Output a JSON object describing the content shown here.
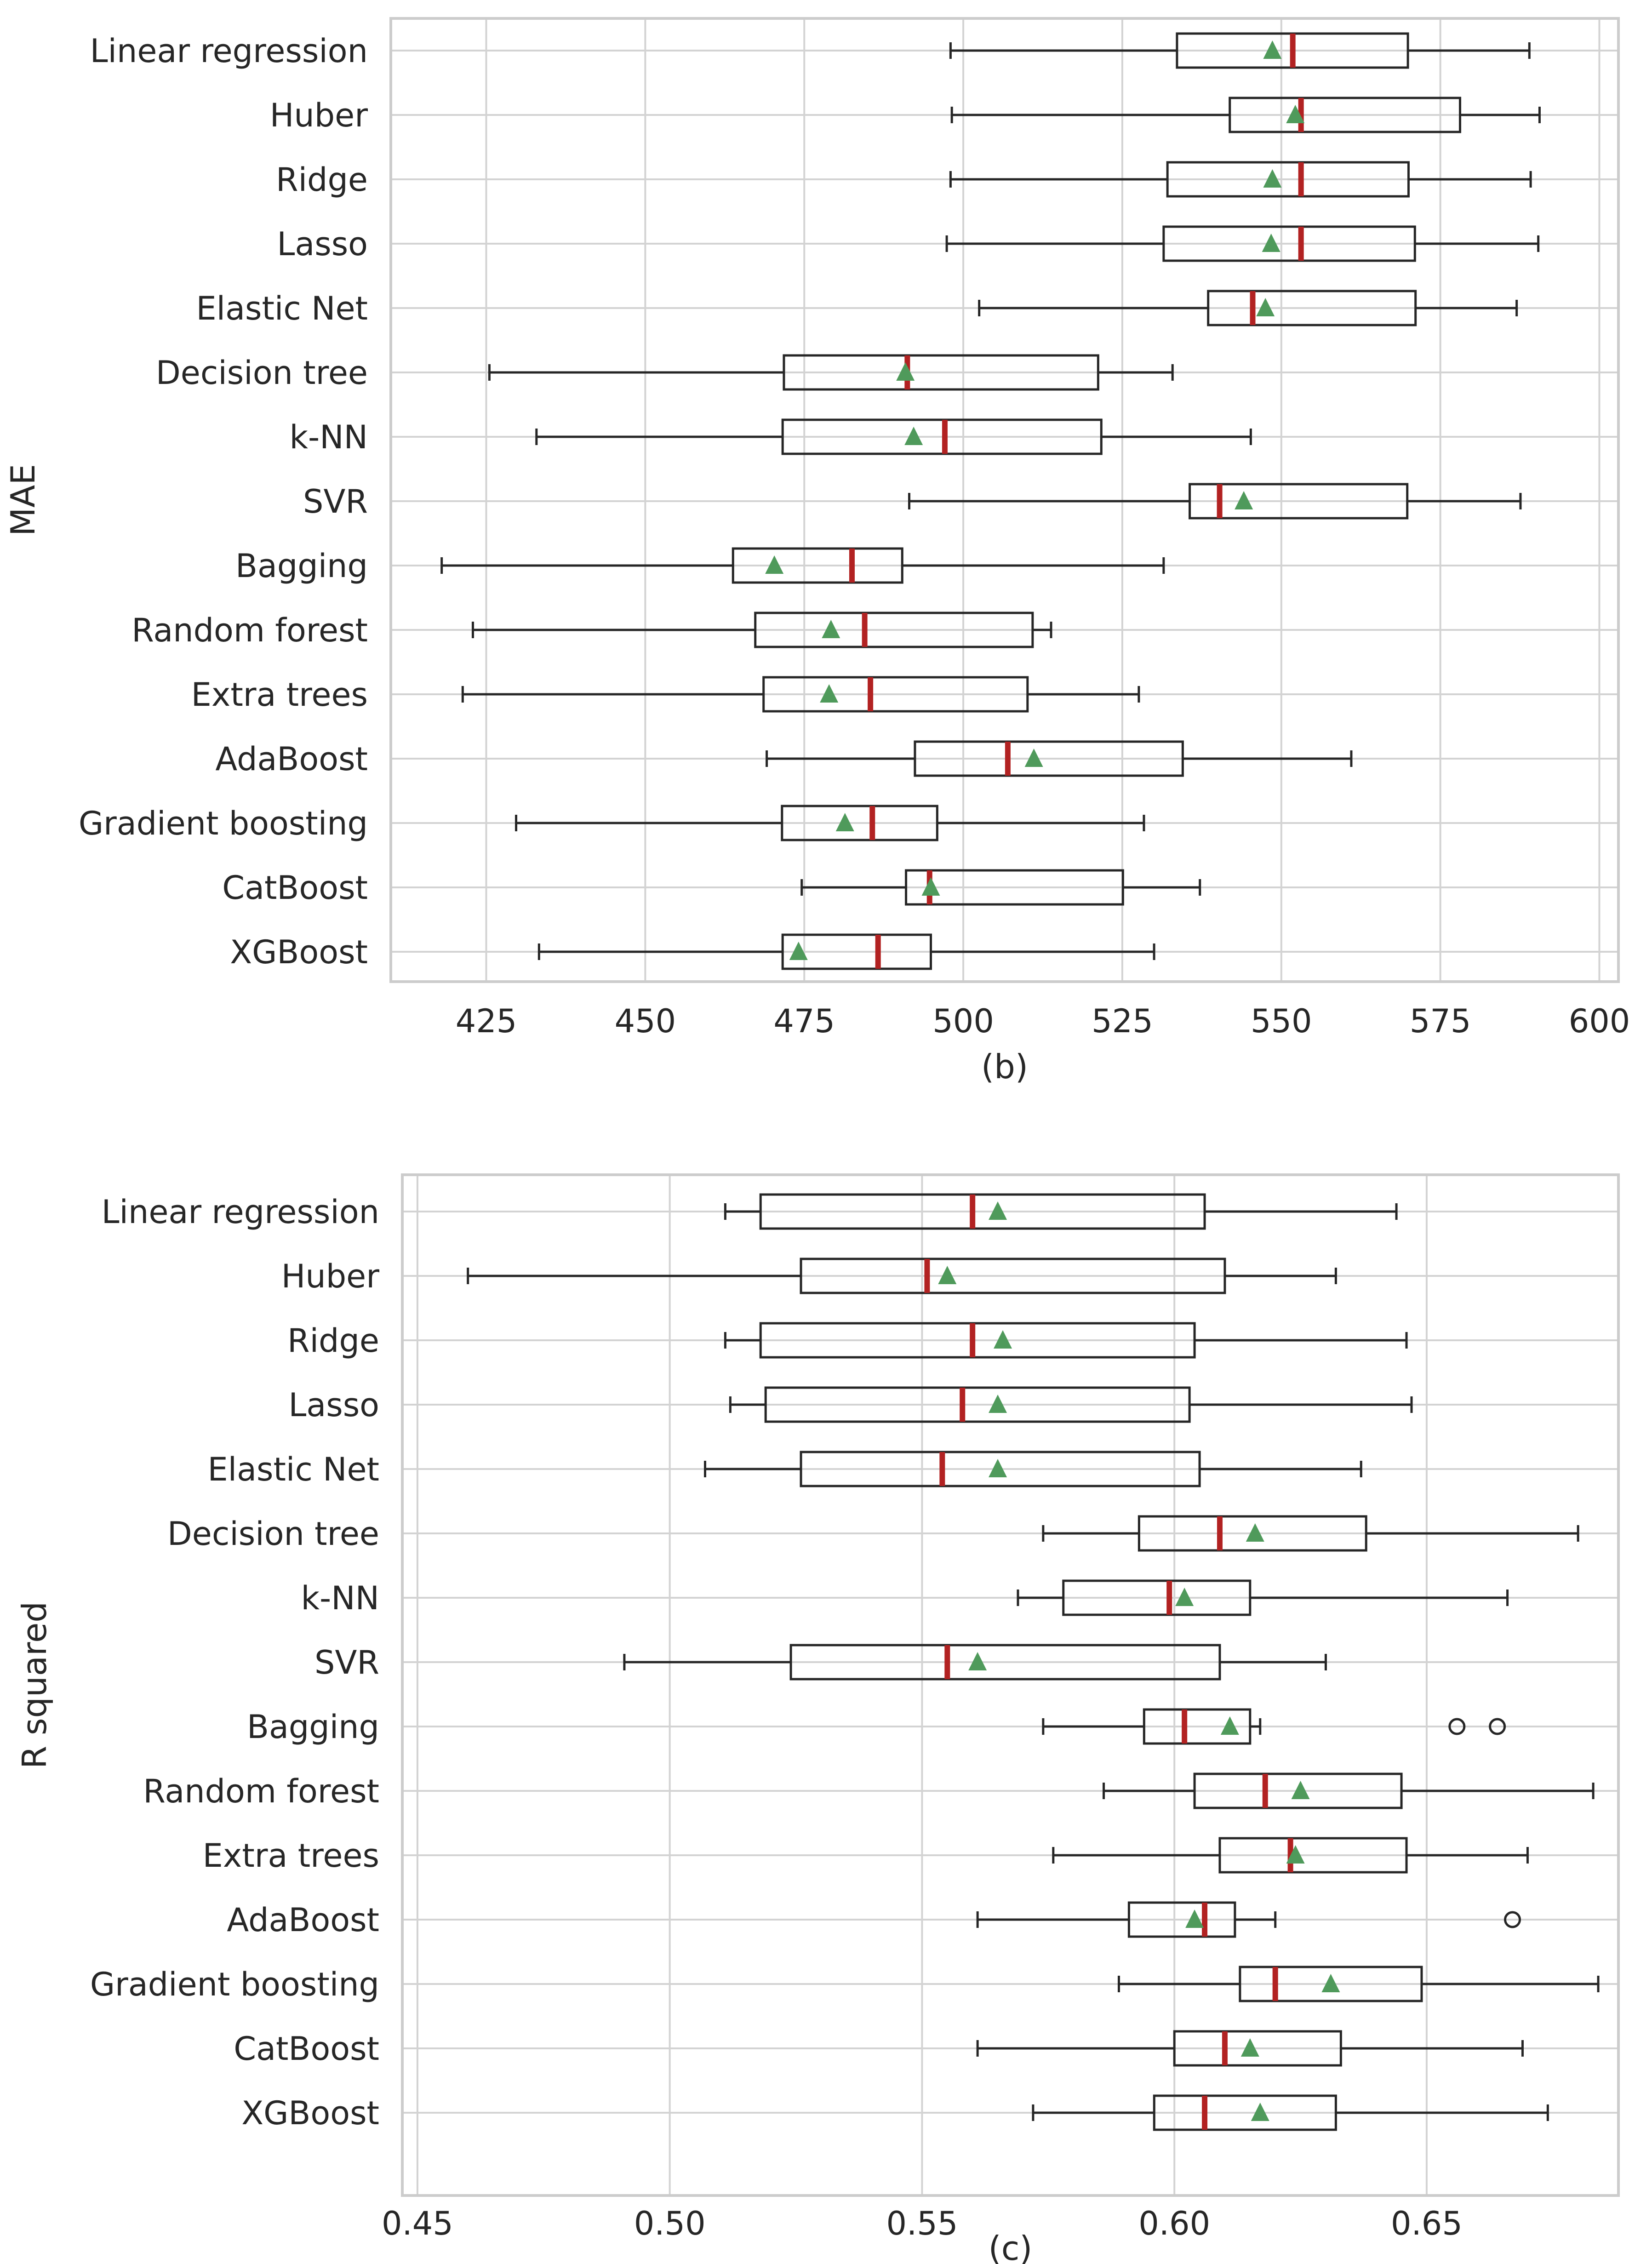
{
  "chart_data": [
    {
      "type": "boxplot",
      "ylabel": "MAE",
      "xlabel": "(b)",
      "xlim": [
        410,
        603
      ],
      "xticks": [
        425,
        450,
        475,
        500,
        525,
        550,
        575,
        600
      ],
      "xtick_labels": [
        "425",
        "450",
        "475",
        "500",
        "525",
        "550",
        "575",
        "600"
      ],
      "grid": true,
      "legend": "none",
      "categories": [
        "Linear regression",
        "Huber",
        "Ridge",
        "Lasso",
        "Elastic Net",
        "Decision tree",
        "k-NN",
        "SVR",
        "Bagging",
        "Random forest",
        "Extra trees",
        "AdaBoost",
        "Gradient boosting",
        "CatBoost",
        "XGBoost"
      ],
      "boxes": [
        {
          "whislo": 498.0,
          "q1": 533.6,
          "med": 551.8,
          "q3": 569.9,
          "whishi": 589.0,
          "mean": 548.6
        },
        {
          "whislo": 498.2,
          "q1": 541.9,
          "med": 553.1,
          "q3": 578.1,
          "whishi": 590.6,
          "mean": 552.2
        },
        {
          "whislo": 498.0,
          "q1": 532.1,
          "med": 553.1,
          "q3": 570.0,
          "whishi": 589.2,
          "mean": 548.6
        },
        {
          "whislo": 497.4,
          "q1": 531.5,
          "med": 553.1,
          "q3": 571.0,
          "whishi": 590.4,
          "mean": 548.4
        },
        {
          "whislo": 502.5,
          "q1": 538.5,
          "med": 545.5,
          "q3": 571.1,
          "whishi": 587.0,
          "mean": 547.5
        },
        {
          "whislo": 425.5,
          "q1": 471.8,
          "med": 491.2,
          "q3": 521.2,
          "whishi": 532.9,
          "mean": 490.9
        },
        {
          "whislo": 432.9,
          "q1": 471.6,
          "med": 497.1,
          "q3": 521.7,
          "whishi": 545.2,
          "mean": 492.2
        },
        {
          "whislo": 491.5,
          "q1": 535.6,
          "med": 540.3,
          "q3": 569.8,
          "whishi": 587.6,
          "mean": 544.1
        },
        {
          "whislo": 418.0,
          "q1": 463.8,
          "med": 482.5,
          "q3": 490.4,
          "whishi": 531.5,
          "mean": 470.3
        },
        {
          "whislo": 422.9,
          "q1": 467.3,
          "med": 484.5,
          "q3": 510.9,
          "whishi": 513.8,
          "mean": 479.2
        },
        {
          "whislo": 421.3,
          "q1": 468.6,
          "med": 485.4,
          "q3": 510.1,
          "whishi": 527.6,
          "mean": 478.9
        },
        {
          "whislo": 469.1,
          "q1": 492.4,
          "med": 507.0,
          "q3": 534.5,
          "whishi": 561.0,
          "mean": 511.1
        },
        {
          "whislo": 429.7,
          "q1": 471.5,
          "med": 485.7,
          "q3": 495.9,
          "whishi": 528.4,
          "mean": 481.4
        },
        {
          "whislo": 474.6,
          "q1": 491.0,
          "med": 494.7,
          "q3": 525.1,
          "whishi": 537.2,
          "mean": 494.9
        },
        {
          "whislo": 433.3,
          "q1": 471.6,
          "med": 486.6,
          "q3": 494.9,
          "whishi": 530.0,
          "mean": 474.1
        }
      ],
      "outliers": []
    },
    {
      "type": "boxplot",
      "ylabel": "R squared",
      "xlabel": "(c)",
      "xlim": [
        0.447,
        0.688
      ],
      "xticks": [
        0.45,
        0.5,
        0.55,
        0.6,
        0.65
      ],
      "xtick_labels": [
        "0.45",
        "0.50",
        "0.55",
        "0.60",
        "0.65"
      ],
      "grid": true,
      "legend": "none",
      "categories": [
        "Linear regression",
        "Huber",
        "Ridge",
        "Lasso",
        "Elastic Net",
        "Decision tree",
        "k-NN",
        "SVR",
        "Bagging",
        "Random forest",
        "Extra trees",
        "AdaBoost",
        "Gradient boosting",
        "CatBoost",
        "XGBoost"
      ],
      "boxes": [
        {
          "whislo": 0.511,
          "q1": 0.518,
          "med": 0.56,
          "q3": 0.606,
          "whishi": 0.644,
          "mean": 0.565
        },
        {
          "whislo": 0.46,
          "q1": 0.526,
          "med": 0.551,
          "q3": 0.61,
          "whishi": 0.632,
          "mean": 0.555
        },
        {
          "whislo": 0.511,
          "q1": 0.518,
          "med": 0.56,
          "q3": 0.604,
          "whishi": 0.646,
          "mean": 0.566
        },
        {
          "whislo": 0.512,
          "q1": 0.519,
          "med": 0.558,
          "q3": 0.603,
          "whishi": 0.647,
          "mean": 0.565
        },
        {
          "whislo": 0.507,
          "q1": 0.526,
          "med": 0.554,
          "q3": 0.605,
          "whishi": 0.637,
          "mean": 0.565
        },
        {
          "whislo": 0.574,
          "q1": 0.593,
          "med": 0.609,
          "q3": 0.638,
          "whishi": 0.68,
          "mean": 0.616
        },
        {
          "whislo": 0.569,
          "q1": 0.578,
          "med": 0.599,
          "q3": 0.615,
          "whishi": 0.666,
          "mean": 0.602
        },
        {
          "whislo": 0.491,
          "q1": 0.524,
          "med": 0.555,
          "q3": 0.609,
          "whishi": 0.63,
          "mean": 0.561
        },
        {
          "whislo": 0.574,
          "q1": 0.594,
          "med": 0.602,
          "q3": 0.615,
          "whishi": 0.617,
          "mean": 0.611
        },
        {
          "whislo": 0.586,
          "q1": 0.604,
          "med": 0.618,
          "q3": 0.645,
          "whishi": 0.683,
          "mean": 0.625
        },
        {
          "whislo": 0.576,
          "q1": 0.609,
          "med": 0.623,
          "q3": 0.646,
          "whishi": 0.67,
          "mean": 0.624
        },
        {
          "whislo": 0.561,
          "q1": 0.591,
          "med": 0.606,
          "q3": 0.612,
          "whishi": 0.62,
          "mean": 0.604
        },
        {
          "whislo": 0.589,
          "q1": 0.613,
          "med": 0.62,
          "q3": 0.649,
          "whishi": 0.684,
          "mean": 0.631
        },
        {
          "whislo": 0.561,
          "q1": 0.6,
          "med": 0.61,
          "q3": 0.633,
          "whishi": 0.669,
          "mean": 0.615
        },
        {
          "whislo": 0.572,
          "q1": 0.596,
          "med": 0.606,
          "q3": 0.632,
          "whishi": 0.674,
          "mean": 0.617
        }
      ],
      "outliers": [
        {
          "category": "Bagging",
          "value": 0.656
        },
        {
          "category": "Bagging",
          "value": 0.664
        },
        {
          "category": "AdaBoost",
          "value": 0.667
        }
      ]
    }
  ],
  "colors": {
    "background": "#ffffff",
    "grid": "#d3d3d3",
    "spine": "#cccccc",
    "box": "#262626",
    "median": "#b22222",
    "mean": "#4f9a5b",
    "text": "#262626"
  }
}
